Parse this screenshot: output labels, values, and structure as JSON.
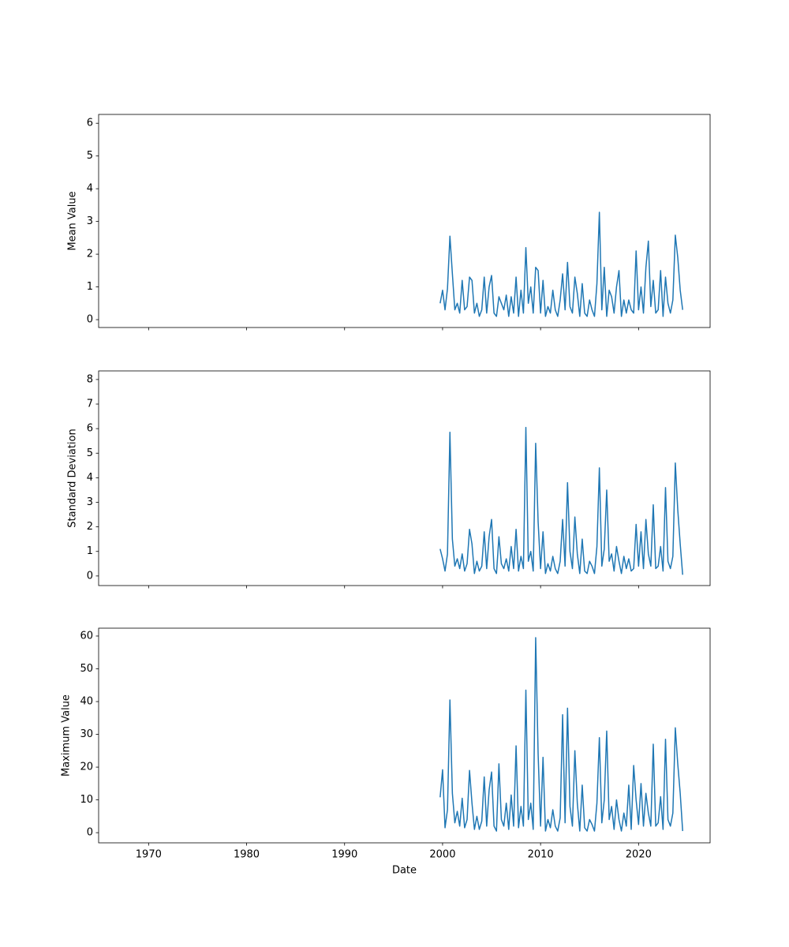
{
  "chart_data": [
    {
      "type": "line",
      "ylabel": "Mean Value",
      "xlim": [
        1964.9,
        2027.3
      ],
      "ylim": [
        -0.24,
        6.27
      ],
      "yticks": [
        0,
        1,
        2,
        3,
        4,
        5,
        6
      ],
      "color": "#1f77b4",
      "x": [
        1999.75,
        2000.0,
        2000.25,
        2000.5,
        2000.75,
        2001.0,
        2001.25,
        2001.5,
        2001.75,
        2002.0,
        2002.25,
        2002.5,
        2002.75,
        2003.0,
        2003.25,
        2003.5,
        2003.75,
        2004.0,
        2004.25,
        2004.5,
        2004.75,
        2005.0,
        2005.25,
        2005.5,
        2005.75,
        2006.0,
        2006.25,
        2006.5,
        2006.75,
        2007.0,
        2007.25,
        2007.5,
        2007.75,
        2008.0,
        2008.25,
        2008.5,
        2008.75,
        2009.0,
        2009.25,
        2009.5,
        2009.75,
        2010.0,
        2010.25,
        2010.5,
        2010.75,
        2011.0,
        2011.25,
        2011.5,
        2011.75,
        2012.0,
        2012.25,
        2012.5,
        2012.75,
        2013.0,
        2013.25,
        2013.5,
        2013.75,
        2014.0,
        2014.25,
        2014.5,
        2014.75,
        2015.0,
        2015.25,
        2015.5,
        2015.75,
        2016.0,
        2016.25,
        2016.5,
        2016.75,
        2017.0,
        2017.25,
        2017.5,
        2017.75,
        2018.0,
        2018.25,
        2018.5,
        2018.75,
        2019.0,
        2019.25,
        2019.5,
        2019.75,
        2020.0,
        2020.25,
        2020.5,
        2020.75,
        2021.0,
        2021.25,
        2021.5,
        2021.75,
        2022.0,
        2022.25,
        2022.5,
        2022.75,
        2023.0,
        2023.25,
        2023.5,
        2023.75,
        2024.0,
        2024.25,
        2024.5
      ],
      "values": [
        0.5,
        0.9,
        0.3,
        0.95,
        2.55,
        1.4,
        0.3,
        0.5,
        0.2,
        1.2,
        0.3,
        0.4,
        1.3,
        1.2,
        0.2,
        0.5,
        0.1,
        0.3,
        1.3,
        0.2,
        1.0,
        1.35,
        0.2,
        0.1,
        0.7,
        0.5,
        0.3,
        0.75,
        0.1,
        0.7,
        0.2,
        1.3,
        0.1,
        0.9,
        0.2,
        2.2,
        0.5,
        1.0,
        0.2,
        1.6,
        1.5,
        0.2,
        1.2,
        0.1,
        0.4,
        0.2,
        0.9,
        0.3,
        0.1,
        0.6,
        1.4,
        0.3,
        1.75,
        0.4,
        0.2,
        1.3,
        0.8,
        0.1,
        1.1,
        0.2,
        0.1,
        0.6,
        0.3,
        0.1,
        1.1,
        3.28,
        0.3,
        1.6,
        0.1,
        0.9,
        0.7,
        0.2,
        1.0,
        1.5,
        0.1,
        0.6,
        0.2,
        0.6,
        0.3,
        0.2,
        2.1,
        0.3,
        1.0,
        0.2,
        1.6,
        2.4,
        0.4,
        1.2,
        0.2,
        0.3,
        1.5,
        0.1,
        1.3,
        0.5,
        0.2,
        0.6,
        2.58,
        1.9,
        0.9,
        0.3
      ]
    },
    {
      "type": "line",
      "ylabel": "Standard Deviation",
      "xlim": [
        1964.9,
        2027.3
      ],
      "ylim": [
        -0.39,
        8.35
      ],
      "yticks": [
        0,
        1,
        2,
        3,
        4,
        5,
        6,
        7,
        8
      ],
      "color": "#1f77b4",
      "x": [
        1999.75,
        2000.0,
        2000.25,
        2000.5,
        2000.75,
        2001.0,
        2001.25,
        2001.5,
        2001.75,
        2002.0,
        2002.25,
        2002.5,
        2002.75,
        2003.0,
        2003.25,
        2003.5,
        2003.75,
        2004.0,
        2004.25,
        2004.5,
        2004.75,
        2005.0,
        2005.25,
        2005.5,
        2005.75,
        2006.0,
        2006.25,
        2006.5,
        2006.75,
        2007.0,
        2007.25,
        2007.5,
        2007.75,
        2008.0,
        2008.25,
        2008.5,
        2008.75,
        2009.0,
        2009.25,
        2009.5,
        2009.75,
        2010.0,
        2010.25,
        2010.5,
        2010.75,
        2011.0,
        2011.25,
        2011.5,
        2011.75,
        2012.0,
        2012.25,
        2012.5,
        2012.75,
        2013.0,
        2013.25,
        2013.5,
        2013.75,
        2014.0,
        2014.25,
        2014.5,
        2014.75,
        2015.0,
        2015.25,
        2015.5,
        2015.75,
        2016.0,
        2016.25,
        2016.5,
        2016.75,
        2017.0,
        2017.25,
        2017.5,
        2017.75,
        2018.0,
        2018.25,
        2018.5,
        2018.75,
        2019.0,
        2019.25,
        2019.5,
        2019.75,
        2020.0,
        2020.25,
        2020.5,
        2020.75,
        2021.0,
        2021.25,
        2021.5,
        2021.75,
        2022.0,
        2022.25,
        2022.5,
        2022.75,
        2023.0,
        2023.25,
        2023.5,
        2023.75,
        2024.0,
        2024.25,
        2024.5
      ],
      "values": [
        1.1,
        0.7,
        0.2,
        0.9,
        5.85,
        1.5,
        0.4,
        0.7,
        0.3,
        0.9,
        0.2,
        0.5,
        1.9,
        1.3,
        0.1,
        0.6,
        0.2,
        0.4,
        1.8,
        0.3,
        1.6,
        2.3,
        0.3,
        0.1,
        1.6,
        0.5,
        0.3,
        0.7,
        0.2,
        1.2,
        0.3,
        1.9,
        0.2,
        0.8,
        0.3,
        6.05,
        0.6,
        1.0,
        0.2,
        5.4,
        2.2,
        0.3,
        1.8,
        0.1,
        0.5,
        0.2,
        0.8,
        0.3,
        0.1,
        0.6,
        2.3,
        0.4,
        3.8,
        1.0,
        0.3,
        2.4,
        0.9,
        0.1,
        1.5,
        0.2,
        0.1,
        0.6,
        0.4,
        0.1,
        1.2,
        4.4,
        0.4,
        1.1,
        3.5,
        0.6,
        0.9,
        0.2,
        1.2,
        0.6,
        0.1,
        0.8,
        0.3,
        0.7,
        0.2,
        0.3,
        2.1,
        0.4,
        1.8,
        0.3,
        2.3,
        0.9,
        0.4,
        2.9,
        0.3,
        0.4,
        1.2,
        0.2,
        3.6,
        0.6,
        0.3,
        0.8,
        4.6,
        2.7,
        1.3,
        0.05
      ]
    },
    {
      "type": "line",
      "ylabel": "Maximum Value",
      "xlabel": "Date",
      "xlim": [
        1964.9,
        2027.3
      ],
      "xticks": [
        1970,
        1980,
        1990,
        2000,
        2010,
        2020
      ],
      "ylim": [
        -3.1,
        62.4
      ],
      "yticks": [
        0,
        10,
        20,
        30,
        40,
        50,
        60
      ],
      "color": "#1f77b4",
      "x": [
        1999.75,
        2000.0,
        2000.25,
        2000.5,
        2000.75,
        2001.0,
        2001.25,
        2001.5,
        2001.75,
        2002.0,
        2002.25,
        2002.5,
        2002.75,
        2003.0,
        2003.25,
        2003.5,
        2003.75,
        2004.0,
        2004.25,
        2004.5,
        2004.75,
        2005.0,
        2005.25,
        2005.5,
        2005.75,
        2006.0,
        2006.25,
        2006.5,
        2006.75,
        2007.0,
        2007.25,
        2007.5,
        2007.75,
        2008.0,
        2008.25,
        2008.5,
        2008.75,
        2009.0,
        2009.25,
        2009.5,
        2009.75,
        2010.0,
        2010.25,
        2010.5,
        2010.75,
        2011.0,
        2011.25,
        2011.5,
        2011.75,
        2012.0,
        2012.25,
        2012.5,
        2012.75,
        2013.0,
        2013.25,
        2013.5,
        2013.75,
        2014.0,
        2014.25,
        2014.5,
        2014.75,
        2015.0,
        2015.25,
        2015.5,
        2015.75,
        2016.0,
        2016.25,
        2016.5,
        2016.75,
        2017.0,
        2017.25,
        2017.5,
        2017.75,
        2018.0,
        2018.25,
        2018.5,
        2018.75,
        2019.0,
        2019.25,
        2019.5,
        2019.75,
        2020.0,
        2020.25,
        2020.5,
        2020.75,
        2021.0,
        2021.25,
        2021.5,
        2021.75,
        2022.0,
        2022.25,
        2022.5,
        2022.75,
        2023.0,
        2023.25,
        2023.5,
        2023.75,
        2024.0,
        2024.25,
        2024.5
      ],
      "values": [
        10.8,
        19.2,
        1.5,
        7.0,
        40.5,
        12.0,
        3.0,
        6.5,
        2.0,
        10.5,
        1.5,
        4.0,
        19.0,
        9.0,
        1.0,
        5.0,
        1.0,
        3.5,
        17.0,
        2.0,
        13.0,
        18.5,
        2.0,
        0.5,
        21.0,
        4.0,
        2.0,
        9.0,
        1.0,
        11.5,
        2.0,
        26.5,
        1.5,
        8.0,
        2.0,
        43.5,
        4.0,
        9.0,
        1.0,
        59.5,
        24.0,
        2.0,
        23.0,
        0.5,
        4.0,
        1.5,
        7.0,
        2.0,
        0.5,
        4.5,
        36.0,
        3.0,
        38.0,
        8.0,
        2.0,
        25.0,
        9.0,
        0.5,
        14.5,
        1.5,
        0.5,
        4.0,
        2.5,
        0.5,
        9.0,
        29.0,
        3.0,
        10.0,
        31.0,
        4.0,
        8.0,
        1.0,
        10.0,
        4.0,
        0.5,
        6.0,
        2.0,
        14.5,
        1.0,
        20.5,
        10.0,
        2.5,
        15.0,
        2.0,
        12.0,
        6.0,
        2.0,
        27.0,
        2.0,
        3.0,
        11.0,
        1.0,
        28.5,
        4.0,
        2.0,
        6.0,
        32.0,
        21.0,
        12.0,
        0.5
      ]
    }
  ]
}
